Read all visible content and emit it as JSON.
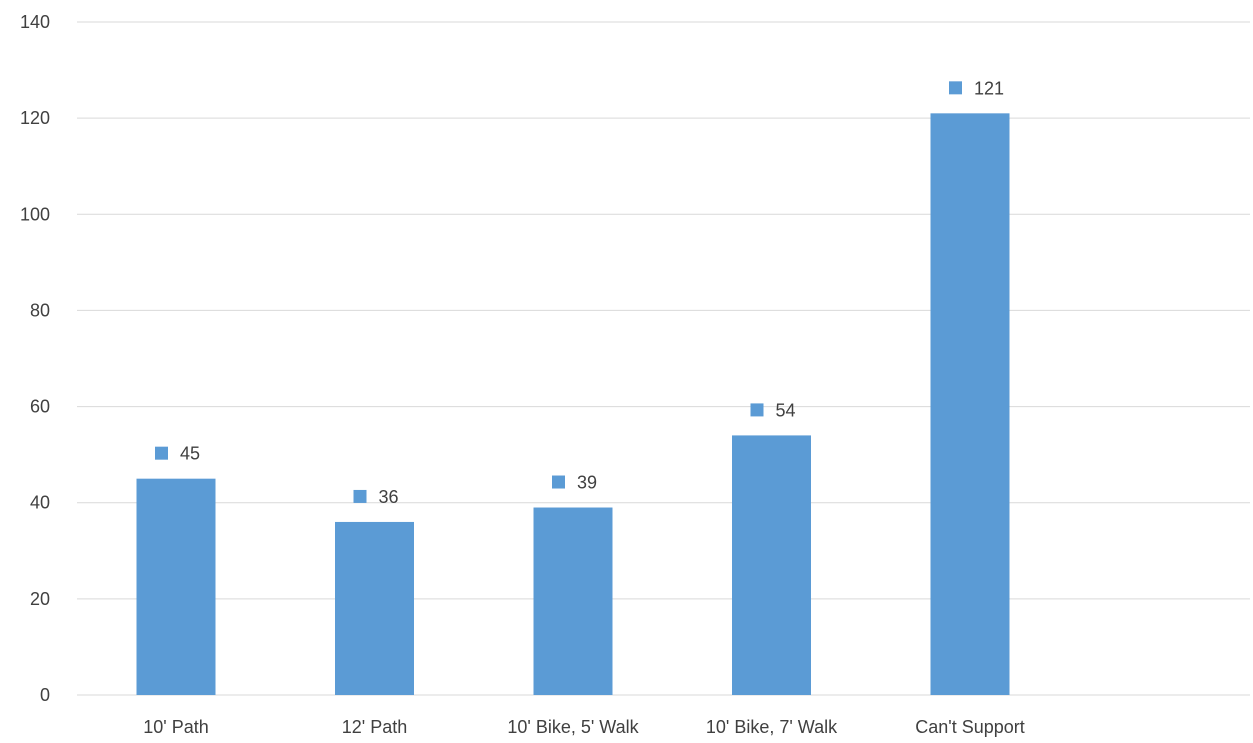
{
  "chart_data": {
    "type": "bar",
    "categories": [
      "10' Path",
      "12' Path",
      "10' Bike, 5' Walk",
      "10' Bike, 7' Walk",
      "Can't Support"
    ],
    "values": [
      45,
      36,
      39,
      54,
      121
    ],
    "data_labels": [
      "45",
      "36",
      "39",
      "54",
      "121"
    ],
    "yticks": [
      "0",
      "20",
      "40",
      "60",
      "80",
      "100",
      "120",
      "140"
    ],
    "ylim": [
      0,
      140
    ],
    "title": "",
    "xlabel": "",
    "ylabel": "",
    "grid": true,
    "bar_color": "#5b9bd5"
  }
}
